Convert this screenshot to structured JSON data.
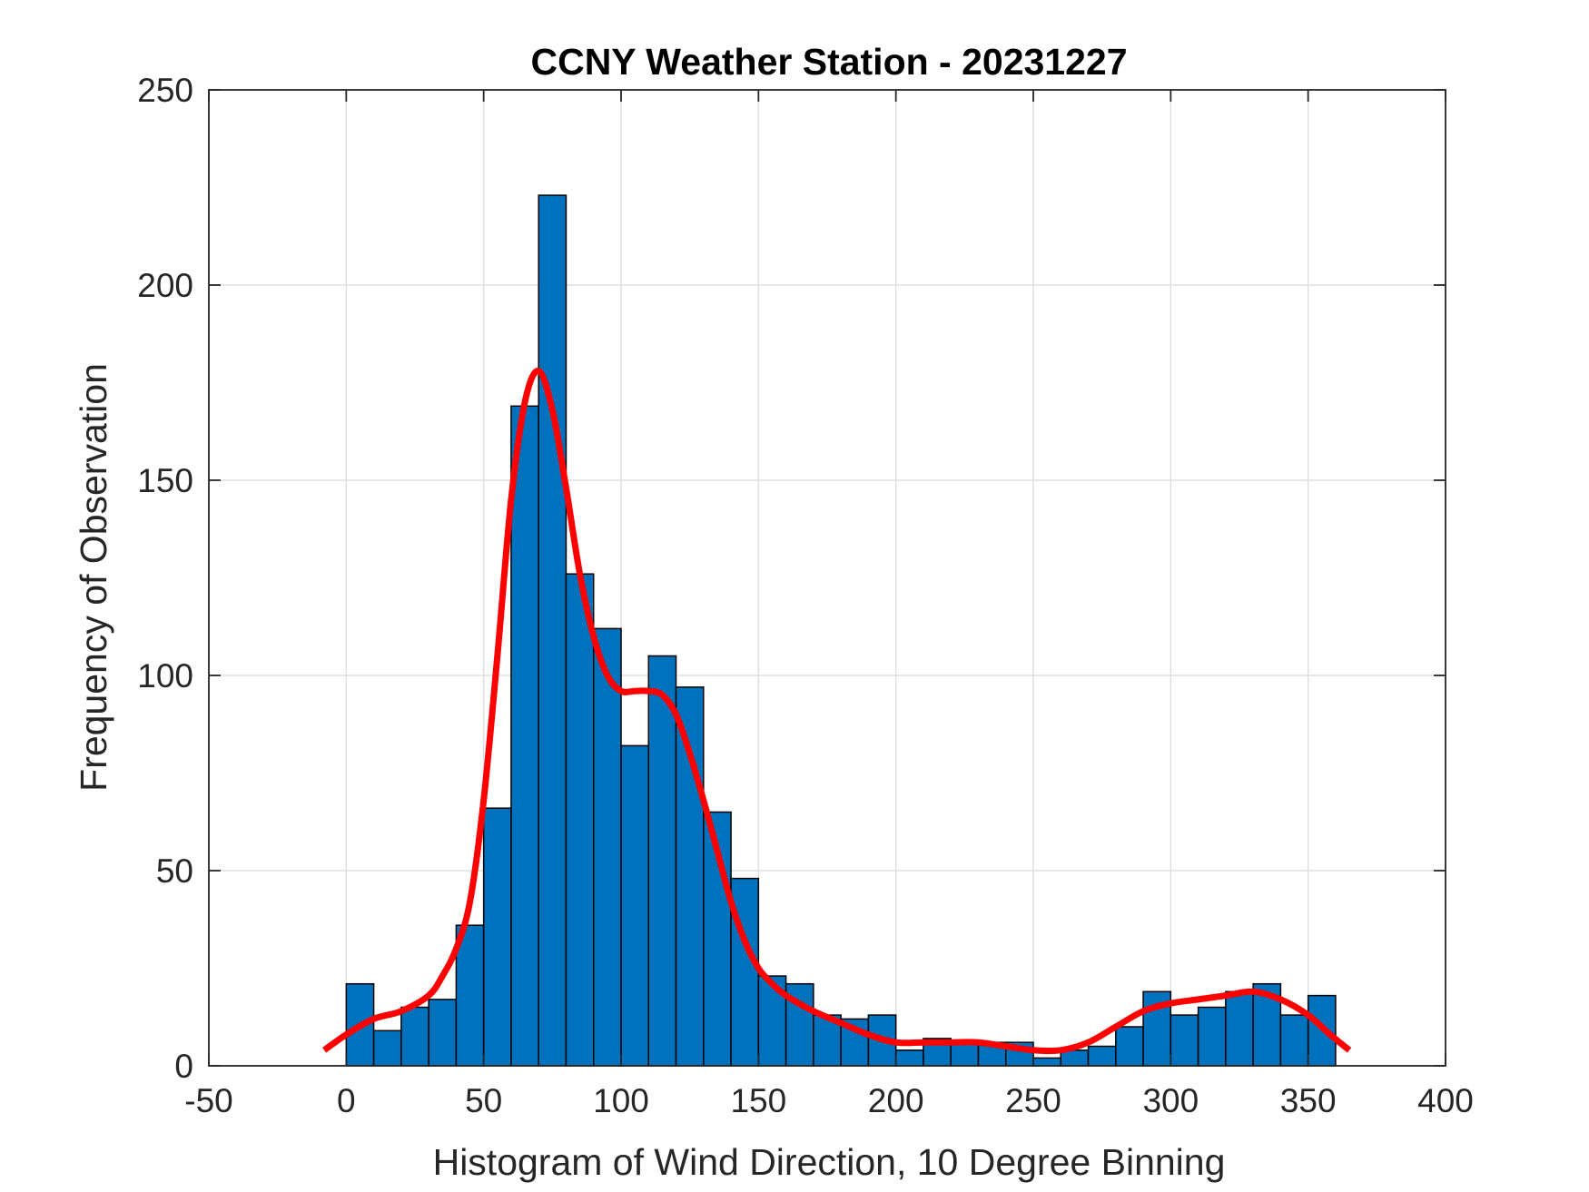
{
  "chart_data": {
    "type": "bar",
    "title": "CCNY Weather Station - 20231227",
    "xlabel": "Histogram of Wind Direction, 10 Degree Binning",
    "ylabel": "Frequency of Observation",
    "xlim": [
      -50,
      400
    ],
    "ylim": [
      0,
      250
    ],
    "xticks": [
      -50,
      0,
      50,
      100,
      150,
      200,
      250,
      300,
      350,
      400
    ],
    "yticks": [
      0,
      50,
      100,
      150,
      200,
      250
    ],
    "xtick_labels": [
      "-50",
      "0",
      "50",
      "100",
      "150",
      "200",
      "250",
      "300",
      "350",
      "400"
    ],
    "ytick_labels": [
      "0",
      "50",
      "100",
      "150",
      "200",
      "250"
    ],
    "grid": true,
    "bin_width": 10,
    "bin_edges": [
      0,
      10,
      20,
      30,
      40,
      50,
      60,
      70,
      80,
      90,
      100,
      110,
      120,
      130,
      140,
      150,
      160,
      170,
      180,
      190,
      200,
      210,
      220,
      230,
      240,
      250,
      260,
      270,
      280,
      290,
      300,
      310,
      320,
      330,
      340,
      350,
      360
    ],
    "values": [
      21,
      9,
      15,
      17,
      36,
      66,
      169,
      223,
      126,
      112,
      82,
      105,
      97,
      65,
      48,
      23,
      21,
      13,
      12,
      13,
      4,
      7,
      6,
      6,
      6,
      2,
      4,
      5,
      10,
      19,
      13,
      15,
      19,
      21,
      13,
      18
    ],
    "bar_color": "#0072BD",
    "edge_color": "#000000",
    "fit_curve": {
      "name": "fit",
      "color": "#FF0000",
      "x": [
        -8,
        0,
        10,
        20,
        30,
        35,
        40,
        45,
        50,
        55,
        60,
        65,
        70,
        75,
        80,
        85,
        90,
        95,
        100,
        105,
        110,
        115,
        120,
        125,
        130,
        135,
        140,
        145,
        150,
        155,
        160,
        170,
        180,
        190,
        200,
        210,
        220,
        230,
        240,
        250,
        260,
        270,
        280,
        290,
        300,
        310,
        320,
        330,
        340,
        350,
        358,
        365
      ],
      "y": [
        4,
        8,
        12,
        14,
        18,
        23,
        30,
        42,
        68,
        105,
        145,
        170,
        178,
        168,
        148,
        126,
        110,
        100,
        96,
        96,
        96,
        95,
        90,
        80,
        68,
        55,
        42,
        32,
        25,
        21,
        18,
        14,
        11,
        8,
        6,
        6,
        6,
        6,
        5,
        4,
        4,
        6,
        10,
        14,
        16,
        17,
        18,
        19,
        17,
        13,
        8,
        4
      ]
    }
  }
}
